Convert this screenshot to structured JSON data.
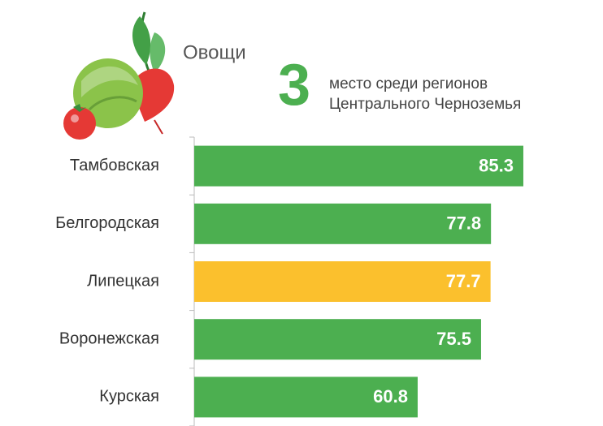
{
  "chart_data": {
    "type": "bar",
    "orientation": "horizontal",
    "title": "Овощи",
    "rank": "3",
    "subtitle_lines": [
      "место среди регионов",
      "Центрального Черноземья"
    ],
    "categories": [
      "Тамбовская",
      "Белгородская",
      "Липецкая",
      "Воронежская",
      "Курская"
    ],
    "values": [
      85.3,
      77.8,
      77.7,
      75.5,
      60.8
    ],
    "colors": [
      "#4caf50",
      "#4caf50",
      "#fbc02d",
      "#4caf50",
      "#4caf50"
    ],
    "rank_color": "#4caf50",
    "xlim": [
      9,
      100
    ]
  }
}
